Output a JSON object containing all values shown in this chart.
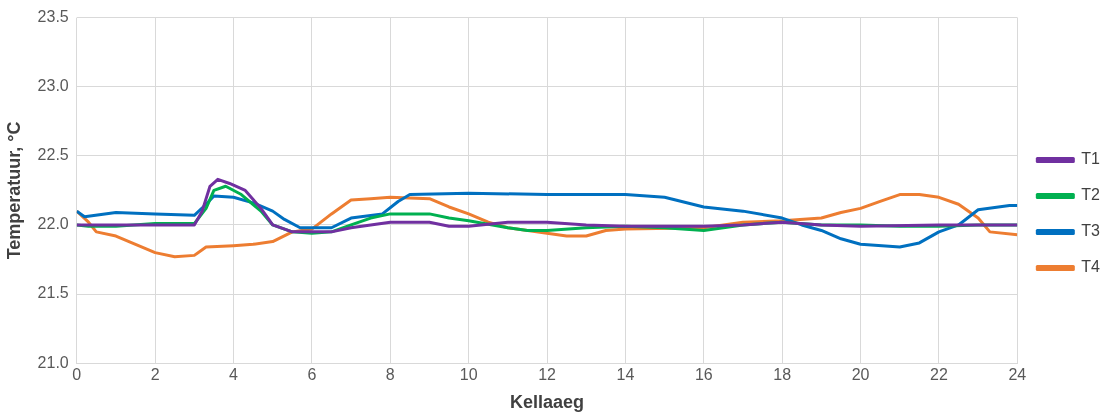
{
  "chart_data": {
    "type": "line",
    "xlabel": "Kellaaeg",
    "ylabel": "Temperatuur, °C",
    "xlim": [
      0,
      24
    ],
    "xticks": [
      0,
      2,
      4,
      6,
      8,
      10,
      12,
      14,
      16,
      18,
      20,
      22,
      24
    ],
    "ylim": [
      21.0,
      23.5
    ],
    "yticks": [
      {
        "value": 21.0,
        "label": "21.0"
      },
      {
        "value": 21.5,
        "label": "21.5"
      },
      {
        "value": 22.0,
        "label": "22.0"
      },
      {
        "value": 22.5,
        "label": "22.5"
      },
      {
        "value": 23.0,
        "label": "23.0"
      },
      {
        "value": 23.5,
        "label": "23.5"
      }
    ],
    "grid": true,
    "legend": "right",
    "marker": "none",
    "line_style": "solid",
    "series": [
      {
        "name": "T1",
        "color": "#7030a0",
        "x": [
          0,
          1,
          3,
          3.2,
          3.4,
          3.6,
          3.9,
          4.3,
          4.7,
          5,
          5.5,
          6,
          6.5,
          7,
          7.5,
          8,
          9,
          9.5,
          10,
          11,
          12,
          13,
          14,
          16,
          17,
          18,
          19,
          20,
          22,
          24
        ],
        "values": [
          22.0,
          22.0,
          22.0,
          22.1,
          22.28,
          22.33,
          22.3,
          22.25,
          22.12,
          22.0,
          21.95,
          21.95,
          21.95,
          21.98,
          22.0,
          22.02,
          22.02,
          21.99,
          21.99,
          22.02,
          22.02,
          22.0,
          21.99,
          21.99,
          22.0,
          22.02,
          22.0,
          21.99,
          22.0,
          22.0
        ]
      },
      {
        "name": "T2",
        "color": "#00b050",
        "x": [
          0,
          0.3,
          1,
          2,
          3,
          3.3,
          3.5,
          3.8,
          4.2,
          4.7,
          5,
          5.5,
          6,
          6.5,
          7,
          7.5,
          8,
          9,
          9.5,
          10,
          11,
          11.5,
          12,
          13,
          14,
          15,
          16,
          17,
          18,
          19,
          20,
          21,
          22,
          23,
          24
        ],
        "values": [
          22.0,
          21.99,
          21.99,
          22.01,
          22.01,
          22.12,
          22.25,
          22.28,
          22.22,
          22.1,
          22.0,
          21.95,
          21.94,
          21.95,
          22.0,
          22.05,
          22.08,
          22.08,
          22.05,
          22.03,
          21.98,
          21.96,
          21.96,
          21.98,
          21.99,
          21.98,
          21.96,
          22.0,
          22.02,
          22.0,
          22.0,
          21.99,
          21.99,
          22.0,
          22.0
        ]
      },
      {
        "name": "T3",
        "color": "#0070c0",
        "x": [
          0,
          0.2,
          1,
          2,
          3,
          3.3,
          3.5,
          4,
          4.5,
          5,
          5.3,
          5.7,
          6.5,
          7,
          7.8,
          8.2,
          8.5,
          10,
          12,
          14,
          15,
          16,
          17,
          18,
          18.5,
          19,
          19.5,
          20,
          21,
          21.5,
          22,
          22.5,
          23,
          23.8,
          24
        ],
        "values": [
          22.1,
          22.06,
          22.09,
          22.08,
          22.07,
          22.15,
          22.21,
          22.2,
          22.16,
          22.1,
          22.04,
          21.98,
          21.98,
          22.05,
          22.08,
          22.17,
          22.22,
          22.23,
          22.22,
          22.22,
          22.2,
          22.13,
          22.1,
          22.05,
          22.0,
          21.96,
          21.9,
          21.86,
          21.84,
          21.87,
          21.95,
          22.0,
          22.11,
          22.14,
          22.14
        ]
      },
      {
        "name": "T4",
        "color": "#ed7d31",
        "x": [
          0,
          0.3,
          0.5,
          1,
          1.5,
          2,
          2.5,
          3,
          3.3,
          4,
          4.5,
          5,
          5.5,
          6,
          6.5,
          7,
          7.5,
          8,
          9,
          9.5,
          10,
          10.5,
          11,
          12,
          12.5,
          13,
          13.5,
          14,
          16,
          17,
          18,
          19,
          19.5,
          20,
          20.5,
          21,
          21.5,
          22,
          22.5,
          23,
          23.3,
          24
        ],
        "values": [
          22.1,
          22.02,
          21.95,
          21.92,
          21.86,
          21.8,
          21.77,
          21.78,
          21.84,
          21.85,
          21.86,
          21.88,
          21.95,
          21.97,
          22.08,
          22.18,
          22.19,
          22.2,
          22.19,
          22.13,
          22.08,
          22.02,
          21.98,
          21.94,
          21.92,
          21.92,
          21.96,
          21.97,
          21.98,
          22.02,
          22.03,
          22.05,
          22.09,
          22.12,
          22.17,
          22.22,
          22.22,
          22.2,
          22.15,
          22.05,
          21.95,
          21.93
        ]
      }
    ]
  }
}
